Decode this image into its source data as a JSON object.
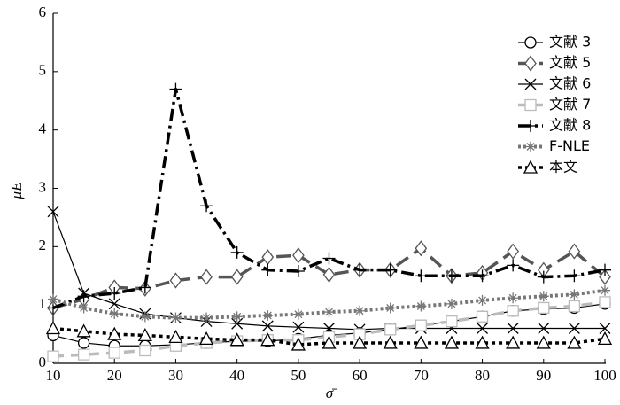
{
  "chart_data": {
    "type": "line",
    "xlabel": "σ̄",
    "ylabel": "μE",
    "x": [
      10,
      15,
      20,
      25,
      30,
      35,
      40,
      45,
      50,
      55,
      60,
      65,
      70,
      75,
      80,
      85,
      90,
      95,
      100
    ],
    "xlim": [
      10,
      100
    ],
    "xticks": [
      10,
      20,
      30,
      40,
      50,
      60,
      70,
      80,
      90,
      100
    ],
    "ylim": [
      0,
      6
    ],
    "yticks": [
      0,
      1,
      2,
      3,
      4,
      5,
      6
    ],
    "legend": "upper right",
    "series": [
      {
        "name": "文献 3",
        "color": "#000000",
        "values": [
          0.48,
          0.35,
          0.3,
          0.3,
          0.32,
          0.35,
          0.38,
          0.38,
          0.42,
          0.48,
          0.52,
          0.58,
          0.65,
          0.72,
          0.8,
          0.9,
          0.93,
          0.95,
          1.02
        ]
      },
      {
        "name": "文献 5",
        "color": "#555555",
        "values": [
          0.95,
          1.1,
          1.3,
          1.28,
          1.42,
          1.48,
          1.48,
          1.82,
          1.85,
          1.52,
          1.6,
          1.6,
          1.97,
          1.5,
          1.55,
          1.92,
          1.6,
          1.92,
          1.48
        ]
      },
      {
        "name": "文献 6",
        "color": "#000000",
        "values": [
          2.6,
          1.2,
          1.02,
          0.85,
          0.78,
          0.72,
          0.68,
          0.64,
          0.62,
          0.6,
          0.58,
          0.6,
          0.6,
          0.6,
          0.6,
          0.6,
          0.6,
          0.6,
          0.6
        ]
      },
      {
        "name": "文献 7",
        "color": "#bbbbbb",
        "values": [
          0.12,
          0.15,
          0.18,
          0.22,
          0.3,
          0.35,
          0.38,
          0.4,
          0.4,
          0.45,
          0.5,
          0.58,
          0.65,
          0.72,
          0.8,
          0.9,
          0.95,
          0.98,
          1.05
        ]
      },
      {
        "name": "文献 8",
        "color": "#000000",
        "values": [
          0.95,
          1.15,
          1.2,
          1.3,
          4.7,
          2.7,
          1.9,
          1.6,
          1.58,
          1.8,
          1.6,
          1.6,
          1.5,
          1.5,
          1.5,
          1.68,
          1.48,
          1.5,
          1.6
        ]
      },
      {
        "name": "F-NLE",
        "color": "#777777",
        "values": [
          1.1,
          0.95,
          0.85,
          0.8,
          0.78,
          0.78,
          0.8,
          0.82,
          0.84,
          0.88,
          0.9,
          0.95,
          0.98,
          1.02,
          1.08,
          1.12,
          1.15,
          1.18,
          1.25
        ]
      },
      {
        "name": "本文",
        "color": "#000000",
        "values": [
          0.6,
          0.55,
          0.5,
          0.48,
          0.45,
          0.42,
          0.4,
          0.4,
          0.32,
          0.35,
          0.35,
          0.35,
          0.35,
          0.35,
          0.35,
          0.35,
          0.35,
          0.35,
          0.42
        ]
      }
    ]
  }
}
